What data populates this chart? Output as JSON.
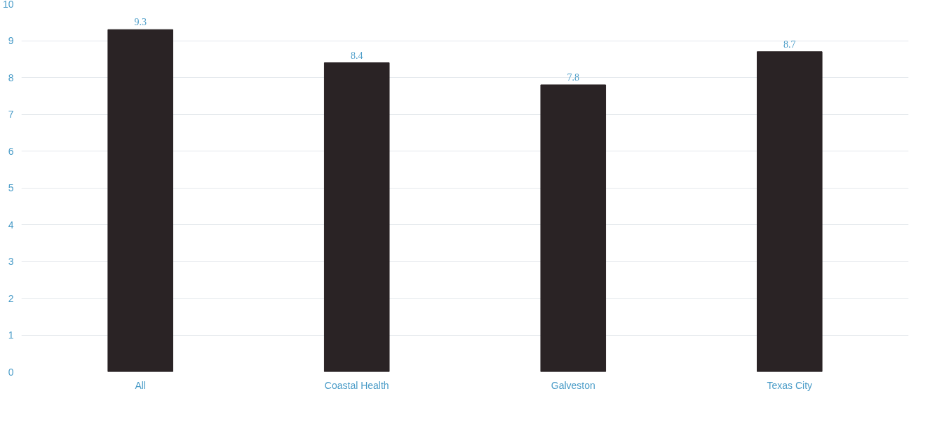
{
  "chart_data": {
    "type": "bar",
    "categories": [
      "All",
      "Coastal Health",
      "Galveston",
      "Texas City"
    ],
    "values": [
      9.3,
      8.4,
      7.8,
      8.7
    ],
    "color": "#2a2325",
    "ylim": [
      0,
      10
    ],
    "yticks": [
      0,
      1,
      2,
      3,
      4,
      5,
      6,
      7,
      8,
      9,
      10
    ],
    "grid": "y",
    "data_labels": true
  }
}
